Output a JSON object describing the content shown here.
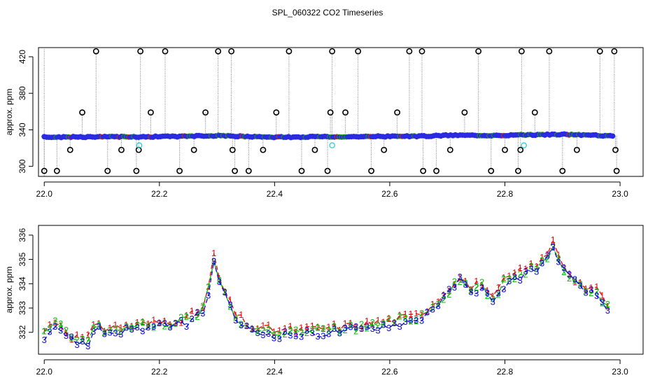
{
  "figure_title": "SPL_060322  CO2 Timeseries",
  "chart_data": [
    {
      "type": "scatter",
      "panel": "top",
      "xlabel": "",
      "ylabel": "approx. ppm",
      "xlim": [
        21.99,
        23.04
      ],
      "ylim": [
        289,
        430
      ],
      "xticks": [
        "22.0",
        "22.2",
        "22.4",
        "22.6",
        "22.8",
        "23.0"
      ],
      "yticks": [
        "300",
        "340",
        "380",
        "420"
      ],
      "baseline_series": {
        "name": "measured CO2 (blue points)",
        "color": "#2a2ae0",
        "x": [
          22.0,
          22.1,
          22.2,
          22.3,
          22.33,
          22.4,
          22.5,
          22.6,
          22.66,
          22.7,
          22.8,
          22.9,
          23.0
        ],
        "y": [
          332.0,
          332.2,
          332.5,
          333.5,
          333.0,
          332.0,
          332.4,
          332.8,
          333.0,
          334.0,
          334.0,
          335.0,
          333.0
        ]
      },
      "outlier_series": {
        "name": "flagged outliers (circles)",
        "x": [
          22.0,
          22.022,
          22.045,
          22.066,
          22.09,
          22.11,
          22.134,
          22.16,
          22.164,
          22.167,
          22.185,
          22.21,
          22.235,
          22.26,
          22.28,
          22.302,
          22.325,
          22.327,
          22.331,
          22.355,
          22.38,
          22.403,
          22.425,
          22.447,
          22.47,
          22.492,
          22.497,
          22.5,
          22.523,
          22.545,
          22.568,
          22.59,
          22.613,
          22.634,
          22.656,
          22.658,
          22.681,
          22.705,
          22.73,
          22.754,
          22.776,
          22.8,
          22.823,
          22.827,
          22.829,
          22.852,
          22.877,
          22.9,
          22.925,
          22.965,
          22.99,
          22.992,
          22.994
        ],
        "y": [
          295,
          295,
          318,
          359,
          426,
          295,
          318,
          295,
          318,
          426,
          359,
          426,
          295,
          318,
          359,
          426,
          426,
          318,
          295,
          295,
          318,
          359,
          426,
          295,
          318,
          295,
          359,
          426,
          359,
          426,
          295,
          318,
          359,
          426,
          426,
          295,
          295,
          318,
          359,
          426,
          295,
          318,
          295,
          318,
          426,
          359,
          426,
          295,
          318,
          426,
          426,
          318,
          295
        ]
      },
      "cyan_markers": {
        "name": "cyan markers",
        "color": "#22d0d0",
        "x": [
          22.165,
          22.5,
          22.833
        ],
        "y": [
          323,
          323,
          323
        ]
      }
    },
    {
      "type": "line",
      "panel": "bottom",
      "xlabel": "",
      "ylabel": "approx. ppm",
      "xlim": [
        21.99,
        23.04
      ],
      "ylim": [
        331.1,
        336.4
      ],
      "xticks": [
        "22.0",
        "22.2",
        "22.4",
        "22.6",
        "22.8",
        "23.0"
      ],
      "yticks": [
        "332",
        "333",
        "334",
        "335",
        "336"
      ],
      "series": [
        {
          "name": "1",
          "label": "1",
          "color": "#dd1111",
          "offset": 0.2,
          "x": [
            22.0,
            22.02,
            22.05,
            22.08,
            22.092,
            22.1,
            22.15,
            22.2,
            22.25,
            22.28,
            22.295,
            22.305,
            22.33,
            22.36,
            22.4,
            22.45,
            22.5,
            22.55,
            22.6,
            22.65,
            22.68,
            22.7,
            22.72,
            22.74,
            22.76,
            22.78,
            22.8,
            22.82,
            22.85,
            22.87,
            22.885,
            22.9,
            22.93,
            22.96,
            22.985
          ],
          "y": [
            331.85,
            332.3,
            331.6,
            331.55,
            332.4,
            331.95,
            332.1,
            332.2,
            332.4,
            332.9,
            335.0,
            333.9,
            332.6,
            332.0,
            331.9,
            331.9,
            332.0,
            332.1,
            332.3,
            332.5,
            333.1,
            333.5,
            334.2,
            333.6,
            333.9,
            333.1,
            334.0,
            334.2,
            334.6,
            334.8,
            335.6,
            334.6,
            333.8,
            333.5,
            332.7
          ]
        },
        {
          "name": "2",
          "label": "2",
          "color": "#11bb11",
          "offset": 0.1,
          "x": [
            22.0,
            22.02,
            22.05,
            22.08,
            22.092,
            22.1,
            22.15,
            22.2,
            22.25,
            22.28,
            22.295,
            22.305,
            22.33,
            22.36,
            22.4,
            22.45,
            22.5,
            22.55,
            22.6,
            22.65,
            22.68,
            22.7,
            22.72,
            22.74,
            22.76,
            22.78,
            22.8,
            22.82,
            22.85,
            22.87,
            22.885,
            22.9,
            22.93,
            22.96,
            22.985
          ],
          "y": [
            331.85,
            332.3,
            331.6,
            331.55,
            332.4,
            331.95,
            332.1,
            332.2,
            332.4,
            332.9,
            335.0,
            333.9,
            332.6,
            332.0,
            331.9,
            331.9,
            332.0,
            332.1,
            332.3,
            332.5,
            333.1,
            333.5,
            334.2,
            333.6,
            333.9,
            333.1,
            334.0,
            334.2,
            334.6,
            334.8,
            335.6,
            334.6,
            333.8,
            333.5,
            332.7
          ]
        },
        {
          "name": "3",
          "label": "3",
          "color": "#1111cc",
          "offset": 0.0,
          "x": [
            22.0,
            22.02,
            22.05,
            22.08,
            22.092,
            22.1,
            22.15,
            22.2,
            22.25,
            22.28,
            22.295,
            22.305,
            22.33,
            22.36,
            22.4,
            22.45,
            22.5,
            22.55,
            22.6,
            22.65,
            22.68,
            22.7,
            22.72,
            22.74,
            22.76,
            22.78,
            22.8,
            22.82,
            22.85,
            22.87,
            22.885,
            22.9,
            22.93,
            22.96,
            22.985
          ],
          "y": [
            331.85,
            332.3,
            331.6,
            331.55,
            332.4,
            331.95,
            332.1,
            332.2,
            332.4,
            332.9,
            335.0,
            333.9,
            332.6,
            332.0,
            331.9,
            331.9,
            332.0,
            332.1,
            332.3,
            332.5,
            333.1,
            333.5,
            334.2,
            333.6,
            333.9,
            333.1,
            334.0,
            334.2,
            334.6,
            334.8,
            335.6,
            334.6,
            333.8,
            333.5,
            332.7
          ]
        }
      ]
    }
  ]
}
